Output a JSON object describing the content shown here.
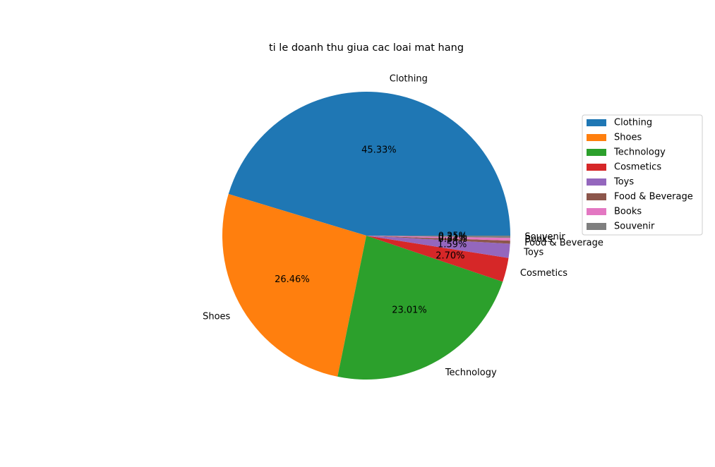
{
  "chart_data": {
    "type": "pie",
    "title": "ti le doanh thu giua cac loai mat hang",
    "categories": [
      "Clothing",
      "Shoes",
      "Technology",
      "Cosmetics",
      "Toys",
      "Food & Beverage",
      "Books",
      "Souvenir"
    ],
    "values": [
      45.33,
      26.46,
      23.01,
      2.7,
      1.59,
      0.34,
      0.31,
      0.25
    ],
    "value_labels": [
      "45.33%",
      "26.46%",
      "23.01%",
      "2.70%",
      "1.59%",
      "0.34%",
      "0.31%",
      "0.25%"
    ],
    "colors": [
      "#1f77b4",
      "#ff7f0e",
      "#2ca02c",
      "#d62728",
      "#9467bd",
      "#8c564b",
      "#e377c2",
      "#7f7f7f"
    ],
    "start_angle_deg": 0,
    "direction": "counterclockwise",
    "legend": {
      "position": "right",
      "entries": [
        "Clothing",
        "Shoes",
        "Technology",
        "Cosmetics",
        "Toys",
        "Food & Beverage",
        "Books",
        "Souvenir"
      ]
    }
  }
}
